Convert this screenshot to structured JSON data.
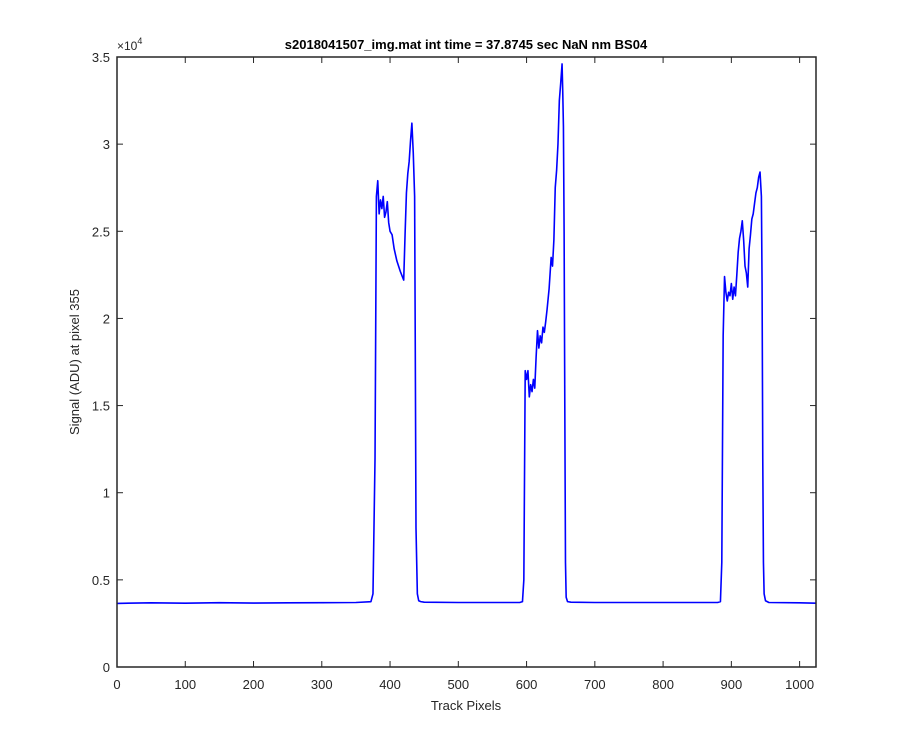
{
  "chart_data": {
    "type": "line",
    "title": "s2018041507_img.mat int time = 37.8745 sec  NaN nm BS04",
    "xlabel": "Track Pixels",
    "ylabel": "Signal (ADU) at pixel 355",
    "y_exponent_base": "×10",
    "y_exponent_power": "4",
    "xlim": [
      0,
      1024
    ],
    "ylim": [
      0,
      35000
    ],
    "x_ticks": [
      0,
      100,
      200,
      300,
      400,
      500,
      600,
      700,
      800,
      900,
      1000
    ],
    "x_tick_labels": [
      "0",
      "100",
      "200",
      "300",
      "400",
      "500",
      "600",
      "700",
      "800",
      "900",
      "1000"
    ],
    "y_ticks": [
      0,
      5000,
      10000,
      15000,
      20000,
      25000,
      30000,
      35000
    ],
    "y_tick_labels": [
      "0",
      "0.5",
      "1",
      "1.5",
      "2",
      "2.5",
      "3",
      "3.5"
    ],
    "grid": false,
    "line_color": "#0000ff",
    "series": [
      {
        "x": [
          0,
          50,
          100,
          150,
          200,
          250,
          300,
          350,
          372,
          375,
          378,
          380,
          382,
          384,
          386,
          388,
          390,
          392,
          394,
          396,
          398,
          400,
          403,
          406,
          410,
          415,
          420,
          422,
          424,
          426,
          428,
          430,
          432,
          434,
          436,
          437,
          438,
          440,
          442,
          445,
          450,
          500,
          550,
          590,
          594,
          596,
          598,
          600,
          602,
          604,
          606,
          608,
          610,
          612,
          614,
          616,
          618,
          620,
          622,
          624,
          626,
          628,
          630,
          633,
          636,
          638,
          640,
          642,
          644,
          646,
          648,
          650,
          652,
          653,
          654,
          655,
          656,
          657,
          658,
          660,
          665,
          700,
          750,
          800,
          850,
          880,
          884,
          886,
          888,
          890,
          892,
          894,
          896,
          898,
          900,
          902,
          904,
          906,
          908,
          910,
          912,
          914,
          916,
          918,
          920,
          922,
          924,
          926,
          928,
          930,
          932,
          934,
          936,
          938,
          940,
          942,
          944,
          945,
          946,
          947,
          948,
          950,
          955,
          1000,
          1024
        ],
        "y": [
          3650,
          3680,
          3660,
          3690,
          3670,
          3680,
          3690,
          3700,
          3750,
          4200,
          12000,
          27000,
          27900,
          26000,
          26800,
          26300,
          27000,
          25800,
          26100,
          26700,
          25500,
          25000,
          24800,
          24000,
          23300,
          22700,
          22200,
          24800,
          27200,
          28300,
          29000,
          30200,
          31200,
          29500,
          27000,
          18000,
          8000,
          4200,
          3800,
          3750,
          3720,
          3700,
          3700,
          3700,
          3750,
          5000,
          17000,
          16500,
          17000,
          15500,
          16200,
          15800,
          16500,
          16000,
          17800,
          19300,
          18300,
          19000,
          18600,
          19500,
          19200,
          19800,
          20500,
          21700,
          23500,
          23000,
          24500,
          27500,
          28500,
          30000,
          32500,
          33500,
          34600,
          33000,
          31000,
          25000,
          15000,
          6000,
          4000,
          3750,
          3720,
          3700,
          3700,
          3700,
          3700,
          3700,
          3750,
          6000,
          19000,
          22400,
          21500,
          21000,
          21500,
          21300,
          22000,
          21100,
          21800,
          21300,
          22500,
          23800,
          24600,
          25000,
          25600,
          24500,
          23000,
          22600,
          21800,
          24000,
          24800,
          25700,
          26000,
          26600,
          27200,
          27500,
          28100,
          28400,
          27000,
          22000,
          12000,
          6000,
          4200,
          3800,
          3700,
          3680,
          3660
        ]
      }
    ]
  }
}
